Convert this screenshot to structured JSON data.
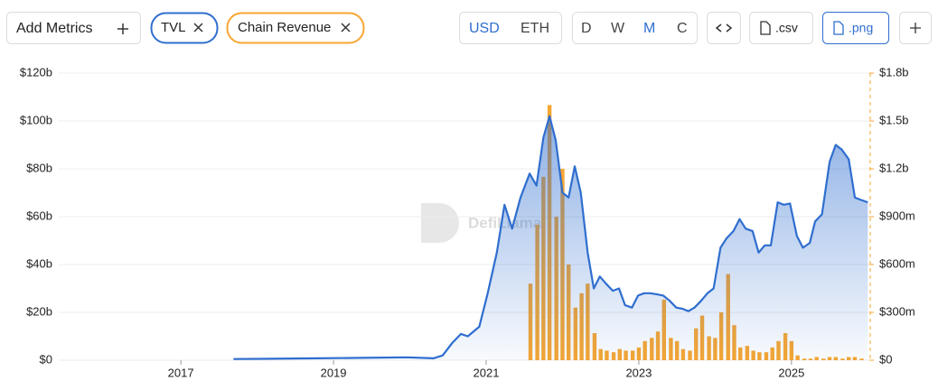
{
  "toolbar": {
    "add_metrics": "Add Metrics",
    "currencies": [
      "USD",
      "ETH"
    ],
    "periods": [
      "D",
      "W",
      "M",
      "C"
    ],
    "csv": ".csv",
    "png": ".png"
  },
  "chart_data": {
    "type": "line",
    "watermark": "DefiLlama",
    "xlim": [
      2015.4,
      2026.02
    ],
    "xticks": [
      2017,
      2019,
      2021,
      2023,
      2025
    ],
    "ylim": [
      0,
      120
    ],
    "yticks": [
      {
        "value": 0,
        "label": "$0"
      },
      {
        "value": 20,
        "label": "$20b"
      },
      {
        "value": 40,
        "label": "$40b"
      },
      {
        "value": 60,
        "label": "$60b"
      },
      {
        "value": 80,
        "label": "$80b"
      },
      {
        "value": 100,
        "label": "$100b"
      },
      {
        "value": 120,
        "label": "$120b"
      }
    ],
    "y2lim": [
      0,
      1.8
    ],
    "y2ticks": [
      {
        "value": 0,
        "label": "$0"
      },
      {
        "value": 0.3,
        "label": "$300m"
      },
      {
        "value": 0.6,
        "label": "$600m"
      },
      {
        "value": 0.9,
        "label": "$900m"
      },
      {
        "value": 1.2,
        "label": "$1.2b"
      },
      {
        "value": 1.5,
        "label": "$1.5b"
      },
      {
        "value": 1.8,
        "label": "$1.8b"
      }
    ],
    "grid": true,
    "series": [
      {
        "name": "TVL",
        "type": "area",
        "color": "#2f6ecf",
        "x": [
          2017.69,
          2018.18,
          2018.78,
          2019.37,
          2019.96,
          2020.31,
          2020.43,
          2020.55,
          2020.67,
          2020.76,
          2020.91,
          2021.02,
          2021.14,
          2021.24,
          2021.34,
          2021.45,
          2021.57,
          2021.66,
          2021.75,
          2021.83,
          2021.91,
          2022.0,
          2022.08,
          2022.16,
          2022.24,
          2022.33,
          2022.41,
          2022.49,
          2022.57,
          2022.66,
          2022.74,
          2022.82,
          2022.91,
          2022.99,
          2023.07,
          2023.15,
          2023.24,
          2023.32,
          2023.4,
          2023.49,
          2023.57,
          2023.65,
          2023.73,
          2023.82,
          2023.9,
          2023.98,
          2024.07,
          2024.15,
          2024.24,
          2024.32,
          2024.4,
          2024.49,
          2024.57,
          2024.65,
          2024.73,
          2024.82,
          2024.9,
          2024.98,
          2025.07,
          2025.15,
          2025.24,
          2025.31,
          2025.4,
          2025.5,
          2025.58,
          2025.66,
          2025.75,
          2025.83,
          2025.91,
          2026.0
        ],
        "values": [
          0.5,
          0.6,
          0.8,
          1,
          1.2,
          0.8,
          2,
          7,
          11,
          10,
          14,
          28,
          45,
          65,
          55,
          68,
          78,
          73,
          93,
          102,
          92,
          70,
          68,
          81,
          70,
          45,
          30,
          35,
          32,
          29,
          30,
          23,
          22,
          27,
          28,
          28,
          27.5,
          27,
          25,
          22,
          21.5,
          20.5,
          22,
          25,
          28,
          30,
          47,
          51,
          54,
          59,
          55,
          54,
          45,
          48,
          48,
          66,
          65,
          65.5,
          52,
          47,
          49,
          58,
          61,
          83,
          90,
          88,
          84,
          68,
          67,
          66
        ]
      },
      {
        "name": "Chain Revenue",
        "type": "bar",
        "axis": "y2",
        "color": "#f7a631",
        "x": [
          2021.58,
          2021.67,
          2021.75,
          2021.83,
          2021.92,
          2022.0,
          2022.08,
          2022.17,
          2022.25,
          2022.33,
          2022.42,
          2022.5,
          2022.58,
          2022.67,
          2022.75,
          2022.83,
          2022.92,
          2023.0,
          2023.08,
          2023.17,
          2023.25,
          2023.33,
          2023.42,
          2023.5,
          2023.58,
          2023.67,
          2023.75,
          2023.83,
          2023.92,
          2024.0,
          2024.08,
          2024.17,
          2024.25,
          2024.33,
          2024.42,
          2024.5,
          2024.58,
          2024.67,
          2024.75,
          2024.83,
          2024.92,
          2025.0,
          2025.08,
          2025.17,
          2025.25,
          2025.33,
          2025.42,
          2025.5,
          2025.58,
          2025.67,
          2025.75,
          2025.83,
          2025.92
        ],
        "values": [
          0.48,
          0.85,
          1.15,
          1.6,
          0.9,
          1.2,
          0.6,
          0.33,
          0.42,
          0.48,
          0.17,
          0.07,
          0.06,
          0.05,
          0.07,
          0.06,
          0.06,
          0.08,
          0.12,
          0.14,
          0.18,
          0.38,
          0.14,
          0.12,
          0.07,
          0.06,
          0.2,
          0.28,
          0.15,
          0.14,
          0.3,
          0.54,
          0.22,
          0.08,
          0.09,
          0.06,
          0.05,
          0.05,
          0.08,
          0.12,
          0.17,
          0.12,
          0.03,
          0.01,
          0.01,
          0.02,
          0.01,
          0.02,
          0.02,
          0.01,
          0.02,
          0.02,
          0.01
        ]
      }
    ]
  }
}
